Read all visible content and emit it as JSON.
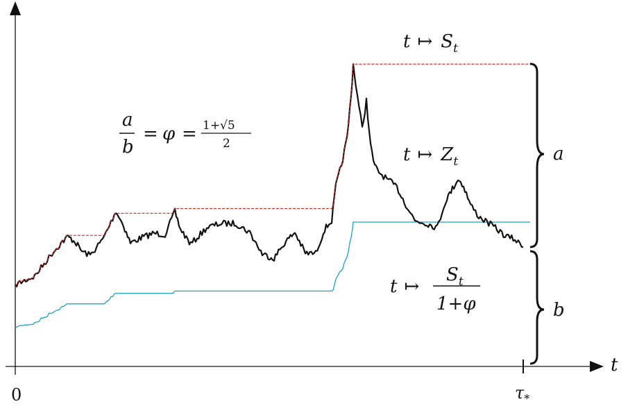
{
  "labels": {
    "origin": "0",
    "x_axis_var": "t",
    "tau": "τ",
    "tau_sub": "*",
    "S_label": {
      "t": "t",
      "arrow": "↦",
      "S": "S",
      "sub": "t"
    },
    "Z_label": {
      "t": "t",
      "arrow": "↦",
      "Z": "Z",
      "sub": "t"
    },
    "ratio_label": {
      "t": "t",
      "arrow": "↦",
      "num": "S",
      "num_sub": "t",
      "den": "1+φ"
    },
    "golden": {
      "a": "a",
      "b": "b",
      "eq1": "=",
      "phi": "φ",
      "eq2": "=",
      "num": "1+√5",
      "den": "2"
    },
    "brace_a": "a",
    "brace_b": "b"
  },
  "colors": {
    "process_Z": "#111111",
    "running_max_S": "#d42020",
    "scaled_max": "#1a9fd0",
    "axes": "#111111"
  }
}
